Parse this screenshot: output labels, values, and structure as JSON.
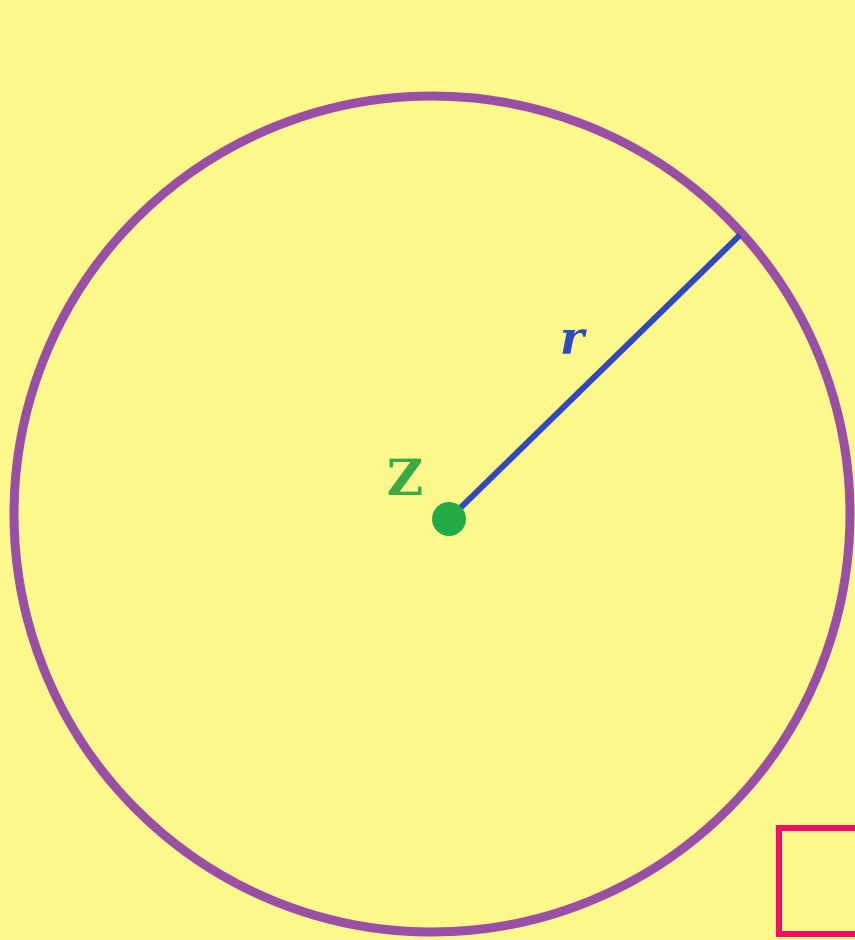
{
  "labels": {
    "center": "Z",
    "radius": "r"
  }
}
